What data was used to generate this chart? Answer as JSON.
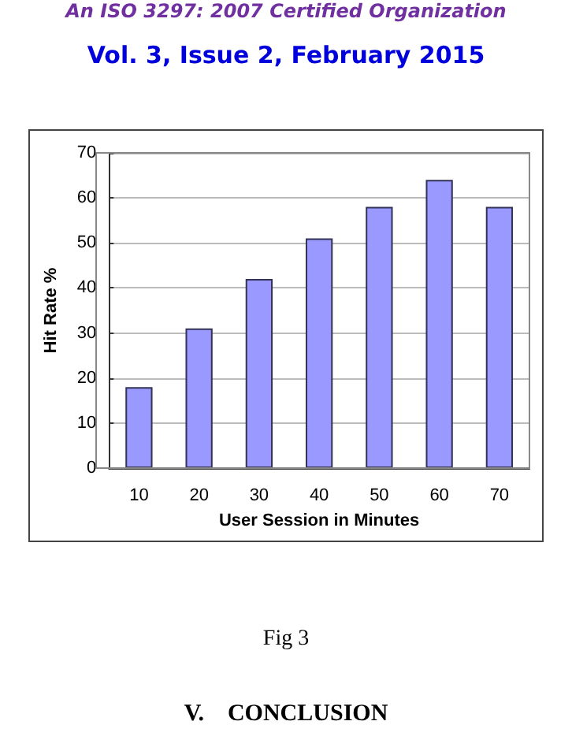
{
  "chart_data": {
    "type": "bar",
    "xlabel": "User Session in Minutes",
    "ylabel": "Hit Rate %",
    "categories": [
      "10",
      "20",
      "30",
      "40",
      "50",
      "60",
      "70"
    ],
    "values": [
      18,
      31,
      42,
      51,
      58,
      64,
      58
    ],
    "color": "#9999ff",
    "ylim": [
      0,
      70
    ],
    "yticks": [
      0,
      10,
      20,
      30,
      40,
      50,
      60,
      70
    ],
    "grid": "y",
    "annotations": [
      "An ISO 3297: 2007 Certified Organization",
      "Vol. 3, Issue 2, February 2015",
      "Fig 3",
      "V.    CONCLUSION"
    ]
  }
}
